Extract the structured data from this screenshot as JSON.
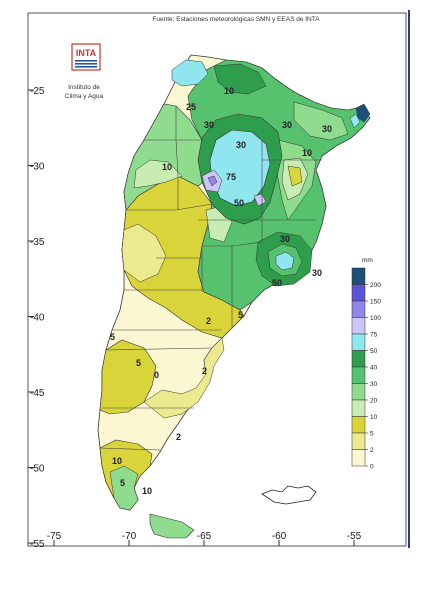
{
  "source_note": "Fuente: Estaciones meteorológicas SMN y EEAS de INTA",
  "logo": {
    "text": "INTA",
    "caption_line1": "Instituto de",
    "caption_line2": "Clima y Agua"
  },
  "axes": {
    "x_ticks": [
      "-75",
      "-70",
      "-65",
      "-60",
      "-55"
    ],
    "y_ticks": [
      "-25",
      "-30",
      "-35",
      "-40",
      "-45",
      "-50",
      "-55"
    ]
  },
  "legend": {
    "unit": "mm",
    "labels": [
      "200",
      "150",
      "100",
      "75",
      "50",
      "40",
      "30",
      "20",
      "10",
      "5",
      "2",
      "0"
    ],
    "colors": [
      "#1f4e79",
      "#5a55d6",
      "#8f86e8",
      "#cbc6f5",
      "#8fe6ef",
      "#2e9e4d",
      "#56c26e",
      "#8fdc8f",
      "#c8edb2",
      "#d9d439",
      "#ecea8f",
      "#fbf7d2"
    ]
  },
  "contour_labels": [
    "10",
    "25",
    "30",
    "30",
    "10",
    "30",
    "75",
    "50",
    "30",
    "50",
    "30",
    "30",
    "10",
    "5",
    "2",
    "5",
    "5",
    "2",
    "0",
    "2",
    "10",
    "5",
    "10"
  ]
}
